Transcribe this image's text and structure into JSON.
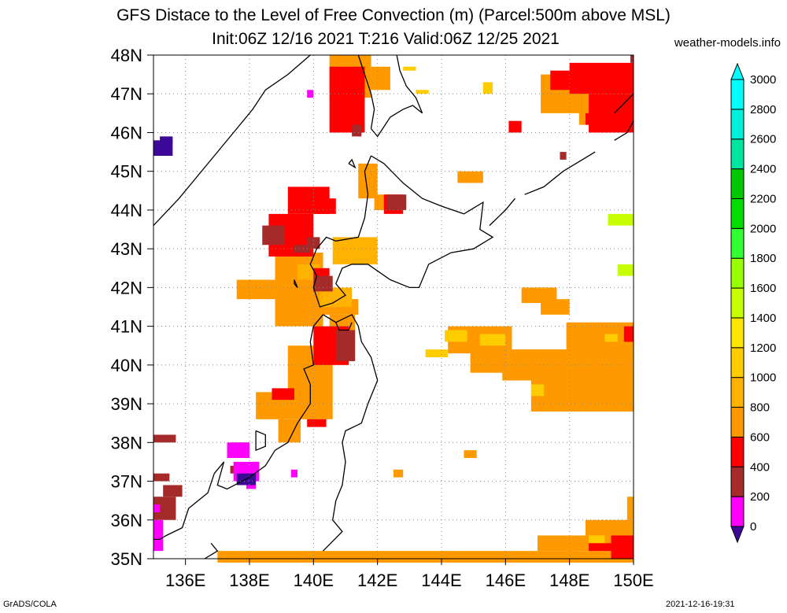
{
  "title": {
    "line1": "GFS Distace to the Level of Free Convection (m) (Parcel:500m above MSL)",
    "line2": "Init:06Z 12/16 2021 T:216 Valid:06Z 12/25 2021"
  },
  "credit": "weather-models.info",
  "footer": {
    "left": "GrADS/COLA",
    "right": "2021-12-16-19:31"
  },
  "map": {
    "lon_range": [
      135,
      150
    ],
    "lat_range": [
      35,
      48
    ],
    "lat_labels": [
      "35N",
      "36N",
      "37N",
      "38N",
      "39N",
      "40N",
      "41N",
      "42N",
      "43N",
      "44N",
      "45N",
      "46N",
      "47N",
      "48N"
    ],
    "lon_labels": [
      "136E",
      "138E",
      "140E",
      "142E",
      "144E",
      "146E",
      "148E",
      "150E"
    ],
    "grid": true
  },
  "colorbar": {
    "labels": [
      "0",
      "200",
      "400",
      "600",
      "800",
      "1000",
      "1200",
      "1400",
      "1600",
      "1800",
      "2000",
      "2200",
      "2400",
      "2600",
      "2800",
      "3000"
    ],
    "colors": [
      "#3c0896",
      "#ff00ff",
      "#a52a2a",
      "#ff0000",
      "#ff9900",
      "#ffb300",
      "#ffcc00",
      "#ffe600",
      "#c8ff00",
      "#96ff00",
      "#32ff32",
      "#00dc00",
      "#00c800",
      "#00e6a0",
      "#00f0dc",
      "#00ffff"
    ]
  },
  "colors": {
    "c0": "#3c0896",
    "c200": "#ff00ff",
    "c400": "#a52a2a",
    "c600": "#ff0000",
    "c800": "#ff9900",
    "c1000": "#ffb300",
    "c1200": "#ffcc00",
    "c1400": "#ffe600",
    "c1600": "#c8ff00",
    "c3000": "#00ffff"
  }
}
